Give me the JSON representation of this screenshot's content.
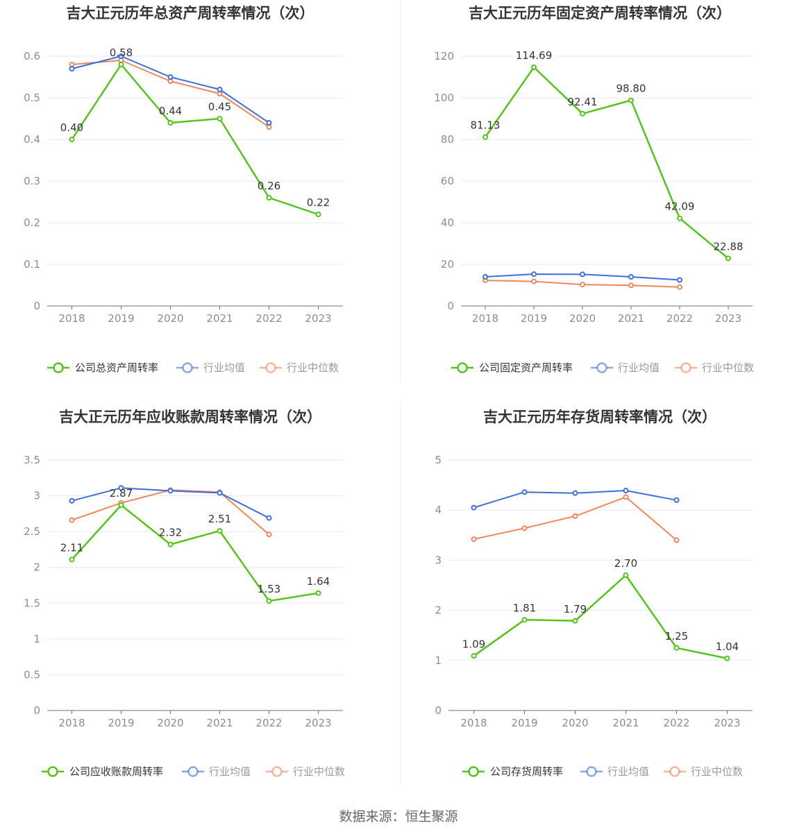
{
  "chart_data": [
    {
      "type": "line",
      "title": "吉大正元历年总资产周转率情况（次）",
      "categories": [
        "2018",
        "2019",
        "2020",
        "2021",
        "2022",
        "2023"
      ],
      "ylim": [
        0,
        0.6
      ],
      "yticks": [
        "0",
        "0.1",
        "0.2",
        "0.3",
        "0.4",
        "0.5",
        "0.6"
      ],
      "series": [
        {
          "name": "公司总资产周转率",
          "values": [
            0.4,
            0.58,
            0.44,
            0.45,
            0.26,
            0.22
          ],
          "labels": [
            "0.40",
            "0.58",
            "0.44",
            "0.45",
            "0.26",
            "0.22"
          ],
          "color": "#52c41a"
        },
        {
          "name": "行业均值",
          "values": [
            0.57,
            0.6,
            0.55,
            0.52,
            0.44,
            null
          ],
          "color": "#3b6fdc"
        },
        {
          "name": "行业中位数",
          "values": [
            0.58,
            0.59,
            0.54,
            0.51,
            0.43,
            null
          ],
          "color": "#f0865c"
        }
      ],
      "legend": "bottom",
      "grid": true
    },
    {
      "type": "line",
      "title": "吉大正元历年固定资产周转率情况（次）",
      "categories": [
        "2018",
        "2019",
        "2020",
        "2021",
        "2022",
        "2023"
      ],
      "ylim": [
        0,
        120
      ],
      "yticks": [
        "0",
        "20",
        "40",
        "60",
        "80",
        "100",
        "120"
      ],
      "series": [
        {
          "name": "公司固定资产周转率",
          "values": [
            81.13,
            114.69,
            92.41,
            98.8,
            42.09,
            22.88
          ],
          "labels": [
            "81.13",
            "114.69",
            "92.41",
            "98.80",
            "42.09",
            "22.88"
          ],
          "color": "#52c41a"
        },
        {
          "name": "行业均值",
          "values": [
            14.0,
            15.3,
            15.2,
            14.0,
            12.5,
            null
          ],
          "color": "#3b6fdc"
        },
        {
          "name": "行业中位数",
          "values": [
            12.3,
            11.8,
            10.3,
            9.9,
            9.1,
            null
          ],
          "color": "#f0865c"
        }
      ],
      "legend": "bottom",
      "grid": true
    },
    {
      "type": "line",
      "title": "吉大正元历年应收账款周转率情况（次）",
      "categories": [
        "2018",
        "2019",
        "2020",
        "2021",
        "2022",
        "2023"
      ],
      "ylim": [
        0,
        3.5
      ],
      "yticks": [
        "0",
        "0.5",
        "1",
        "1.5",
        "2",
        "2.5",
        "3",
        "3.5"
      ],
      "series": [
        {
          "name": "公司应收账款周转率",
          "values": [
            2.11,
            2.87,
            2.32,
            2.51,
            1.53,
            1.64
          ],
          "labels": [
            "2.11",
            "2.87",
            "2.32",
            "2.51",
            "1.53",
            "1.64"
          ],
          "color": "#52c41a"
        },
        {
          "name": "行业均值",
          "values": [
            2.93,
            3.11,
            3.07,
            3.04,
            2.69,
            null
          ],
          "color": "#3b6fdc"
        },
        {
          "name": "行业中位数",
          "values": [
            2.66,
            2.9,
            3.08,
            3.05,
            2.46,
            null
          ],
          "color": "#f0865c"
        }
      ],
      "legend": "bottom",
      "grid": true
    },
    {
      "type": "line",
      "title": "吉大正元历年存货周转率情况（次）",
      "categories": [
        "2018",
        "2019",
        "2020",
        "2021",
        "2022",
        "2023"
      ],
      "ylim": [
        0,
        5
      ],
      "yticks": [
        "0",
        "1",
        "2",
        "3",
        "4",
        "5"
      ],
      "series": [
        {
          "name": "公司存货周转率",
          "values": [
            1.09,
            1.81,
            1.79,
            2.7,
            1.25,
            1.04
          ],
          "labels": [
            "1.09",
            "1.81",
            "1.79",
            "2.70",
            "1.25",
            "1.04"
          ],
          "color": "#52c41a"
        },
        {
          "name": "行业均值",
          "values": [
            4.05,
            4.36,
            4.34,
            4.39,
            4.2,
            null
          ],
          "color": "#3b6fdc"
        },
        {
          "name": "行业中位数",
          "values": [
            3.42,
            3.64,
            3.88,
            4.26,
            3.4,
            null
          ],
          "color": "#f0865c"
        }
      ],
      "legend": "bottom",
      "grid": true
    }
  ],
  "footer": {
    "source": "数据来源：恒生聚源"
  }
}
